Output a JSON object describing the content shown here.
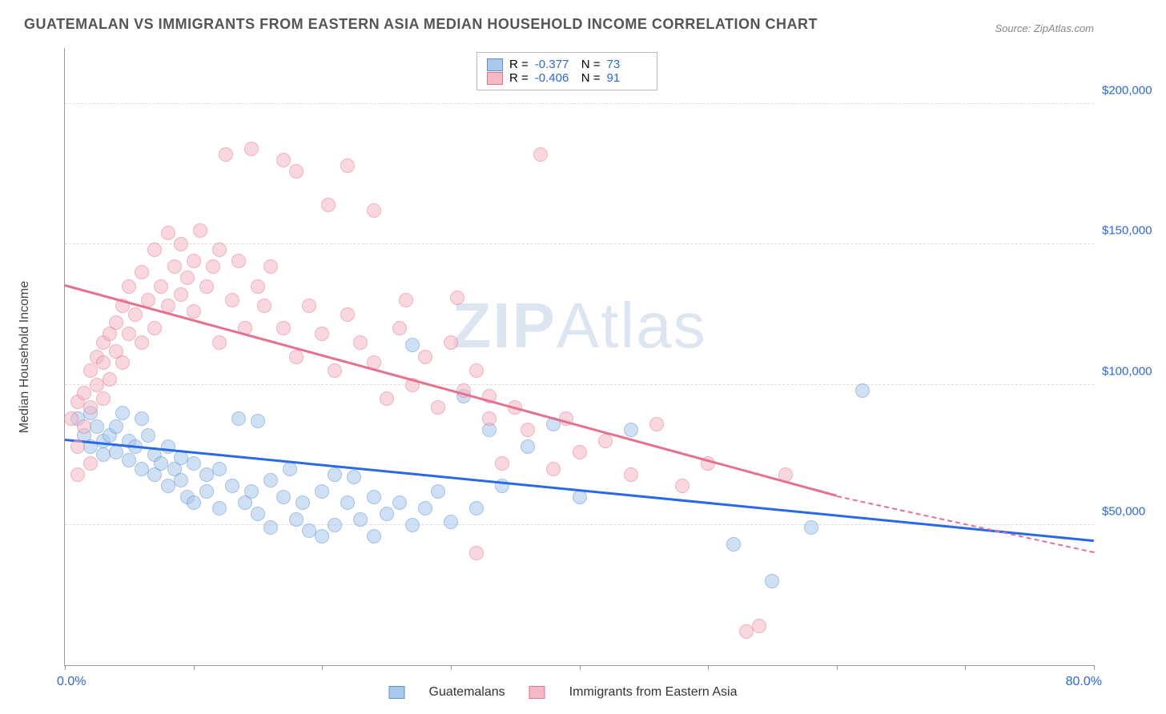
{
  "title": "GUATEMALAN VS IMMIGRANTS FROM EASTERN ASIA MEDIAN HOUSEHOLD INCOME CORRELATION CHART",
  "source": "Source: ZipAtlas.com",
  "ylabel": "Median Household Income",
  "watermark_bold": "ZIP",
  "watermark_light": "Atlas",
  "chart": {
    "type": "scatter",
    "xlim": [
      0,
      80
    ],
    "ylim": [
      0,
      220000
    ],
    "xlabel_min": "0.0%",
    "xlabel_max": "80.0%",
    "ytick_values": [
      50000,
      100000,
      150000,
      200000
    ],
    "ytick_labels": [
      "$50,000",
      "$100,000",
      "$150,000",
      "$200,000"
    ],
    "xtick_marks": [
      0,
      10,
      20,
      30,
      40,
      50,
      60,
      70,
      80
    ],
    "grid_color": "#dddddd",
    "axis_color": "#999999",
    "background_color": "#ffffff",
    "label_fontsize": 16,
    "tick_fontsize": 15,
    "tick_color": "#2968e6"
  },
  "series": [
    {
      "name": "Guatemalans",
      "color_fill": "#a9c8ec",
      "color_stroke": "#5a8fd4",
      "fill_opacity": 0.55,
      "marker_radius": 9,
      "R": "-0.377",
      "N": "73",
      "trend": {
        "x1": 0,
        "y1": 80000,
        "x2": 80,
        "y2": 44000,
        "color": "#2968e6",
        "dash_from_x": null
      },
      "points": [
        [
          1,
          88000
        ],
        [
          1.5,
          82000
        ],
        [
          2,
          90000
        ],
        [
          2,
          78000
        ],
        [
          2.5,
          85000
        ],
        [
          3,
          80000
        ],
        [
          3,
          75000
        ],
        [
          3.5,
          82000
        ],
        [
          4,
          85000
        ],
        [
          4,
          76000
        ],
        [
          4.5,
          90000
        ],
        [
          5,
          80000
        ],
        [
          5,
          73000
        ],
        [
          5.5,
          78000
        ],
        [
          6,
          88000
        ],
        [
          6,
          70000
        ],
        [
          6.5,
          82000
        ],
        [
          7,
          75000
        ],
        [
          7,
          68000
        ],
        [
          7.5,
          72000
        ],
        [
          8,
          78000
        ],
        [
          8,
          64000
        ],
        [
          8.5,
          70000
        ],
        [
          9,
          66000
        ],
        [
          9,
          74000
        ],
        [
          9.5,
          60000
        ],
        [
          10,
          72000
        ],
        [
          10,
          58000
        ],
        [
          11,
          68000
        ],
        [
          11,
          62000
        ],
        [
          12,
          70000
        ],
        [
          12,
          56000
        ],
        [
          13,
          64000
        ],
        [
          13.5,
          88000
        ],
        [
          14,
          58000
        ],
        [
          14.5,
          62000
        ],
        [
          15,
          87000
        ],
        [
          15,
          54000
        ],
        [
          16,
          66000
        ],
        [
          16,
          49000
        ],
        [
          17,
          60000
        ],
        [
          17.5,
          70000
        ],
        [
          18,
          52000
        ],
        [
          18.5,
          58000
        ],
        [
          19,
          48000
        ],
        [
          20,
          62000
        ],
        [
          20,
          46000
        ],
        [
          21,
          68000
        ],
        [
          21,
          50000
        ],
        [
          22,
          58000
        ],
        [
          22.5,
          67000
        ],
        [
          23,
          52000
        ],
        [
          24,
          60000
        ],
        [
          24,
          46000
        ],
        [
          25,
          54000
        ],
        [
          26,
          58000
        ],
        [
          27,
          50000
        ],
        [
          27,
          114000
        ],
        [
          28,
          56000
        ],
        [
          29,
          62000
        ],
        [
          30,
          51000
        ],
        [
          31,
          96000
        ],
        [
          32,
          56000
        ],
        [
          33,
          84000
        ],
        [
          34,
          64000
        ],
        [
          36,
          78000
        ],
        [
          38,
          86000
        ],
        [
          40,
          60000
        ],
        [
          44,
          84000
        ],
        [
          52,
          43000
        ],
        [
          55,
          30000
        ],
        [
          58,
          49000
        ],
        [
          62,
          98000
        ]
      ]
    },
    {
      "name": "Immigrants from Eastern Asia",
      "color_fill": "#f4b8c6",
      "color_stroke": "#e6718f",
      "fill_opacity": 0.55,
      "marker_radius": 9,
      "R": "-0.406",
      "N": "91",
      "trend": {
        "x1": 0,
        "y1": 135000,
        "x2": 60,
        "y2": 60000,
        "color": "#e6718f",
        "dash_from_x": 60,
        "dash_to_x": 80,
        "dash_to_y": 40000
      },
      "points": [
        [
          0.5,
          88000
        ],
        [
          1,
          78000
        ],
        [
          1,
          68000
        ],
        [
          1,
          94000
        ],
        [
          1.5,
          85000
        ],
        [
          1.5,
          97000
        ],
        [
          2,
          72000
        ],
        [
          2,
          92000
        ],
        [
          2,
          105000
        ],
        [
          2.5,
          100000
        ],
        [
          2.5,
          110000
        ],
        [
          3,
          95000
        ],
        [
          3,
          115000
        ],
        [
          3,
          108000
        ],
        [
          3.5,
          118000
        ],
        [
          3.5,
          102000
        ],
        [
          4,
          112000
        ],
        [
          4,
          122000
        ],
        [
          4.5,
          108000
        ],
        [
          4.5,
          128000
        ],
        [
          5,
          118000
        ],
        [
          5,
          135000
        ],
        [
          5.5,
          125000
        ],
        [
          6,
          115000
        ],
        [
          6,
          140000
        ],
        [
          6.5,
          130000
        ],
        [
          7,
          120000
        ],
        [
          7,
          148000
        ],
        [
          7.5,
          135000
        ],
        [
          8,
          128000
        ],
        [
          8,
          154000
        ],
        [
          8.5,
          142000
        ],
        [
          9,
          132000
        ],
        [
          9,
          150000
        ],
        [
          9.5,
          138000
        ],
        [
          10,
          126000
        ],
        [
          10,
          144000
        ],
        [
          10.5,
          155000
        ],
        [
          11,
          135000
        ],
        [
          11.5,
          142000
        ],
        [
          12,
          115000
        ],
        [
          12,
          148000
        ],
        [
          12.5,
          182000
        ],
        [
          13,
          130000
        ],
        [
          13.5,
          144000
        ],
        [
          14,
          120000
        ],
        [
          14.5,
          184000
        ],
        [
          15,
          135000
        ],
        [
          15.5,
          128000
        ],
        [
          16,
          142000
        ],
        [
          17,
          120000
        ],
        [
          17,
          180000
        ],
        [
          18,
          110000
        ],
        [
          18,
          176000
        ],
        [
          19,
          128000
        ],
        [
          20,
          118000
        ],
        [
          20.5,
          164000
        ],
        [
          21,
          105000
        ],
        [
          22,
          125000
        ],
        [
          22,
          178000
        ],
        [
          23,
          115000
        ],
        [
          24,
          108000
        ],
        [
          24,
          162000
        ],
        [
          25,
          95000
        ],
        [
          26,
          120000
        ],
        [
          26.5,
          130000
        ],
        [
          27,
          100000
        ],
        [
          28,
          110000
        ],
        [
          29,
          92000
        ],
        [
          30,
          115000
        ],
        [
          30.5,
          131000
        ],
        [
          31,
          98000
        ],
        [
          32,
          105000
        ],
        [
          33,
          88000
        ],
        [
          33,
          96000
        ],
        [
          34,
          72000
        ],
        [
          35,
          92000
        ],
        [
          36,
          84000
        ],
        [
          37,
          182000
        ],
        [
          38,
          70000
        ],
        [
          39,
          88000
        ],
        [
          40,
          76000
        ],
        [
          42,
          80000
        ],
        [
          44,
          68000
        ],
        [
          46,
          86000
        ],
        [
          48,
          64000
        ],
        [
          50,
          72000
        ],
        [
          53,
          12000
        ],
        [
          54,
          14000
        ],
        [
          56,
          68000
        ],
        [
          32,
          40000
        ]
      ]
    }
  ],
  "legend": {
    "R_label": "R =",
    "N_label": "N ="
  }
}
